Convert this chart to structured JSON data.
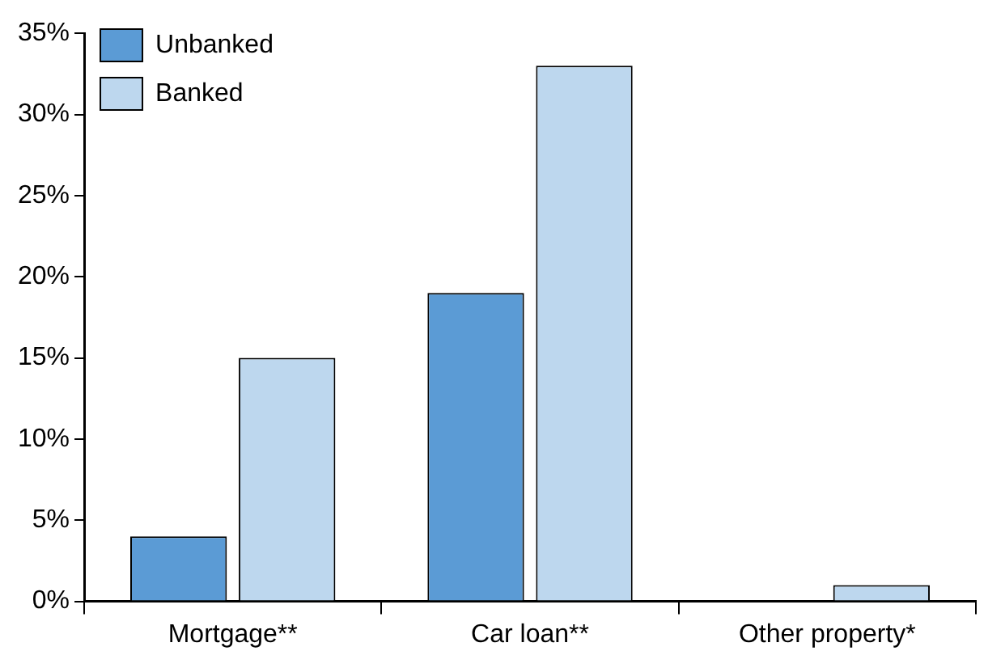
{
  "chart_data": {
    "type": "bar",
    "categories": [
      "Mortgage**",
      "Car loan**",
      "Other property*"
    ],
    "series": [
      {
        "name": "Unbanked",
        "color": "#5b9bd5",
        "values": [
          4,
          19,
          0
        ]
      },
      {
        "name": "Banked",
        "color": "#bdd7ee",
        "values": [
          15,
          33,
          1
        ]
      }
    ],
    "ylim": [
      0,
      35
    ],
    "yticks": [
      {
        "value": 0,
        "label": "0%"
      },
      {
        "value": 5,
        "label": "5%"
      },
      {
        "value": 10,
        "label": "10%"
      },
      {
        "value": 15,
        "label": "15%"
      },
      {
        "value": 20,
        "label": "20%"
      },
      {
        "value": 25,
        "label": "25%"
      },
      {
        "value": 30,
        "label": "30%"
      },
      {
        "value": 35,
        "label": "35%"
      }
    ],
    "grid": false,
    "legend": "top left"
  }
}
